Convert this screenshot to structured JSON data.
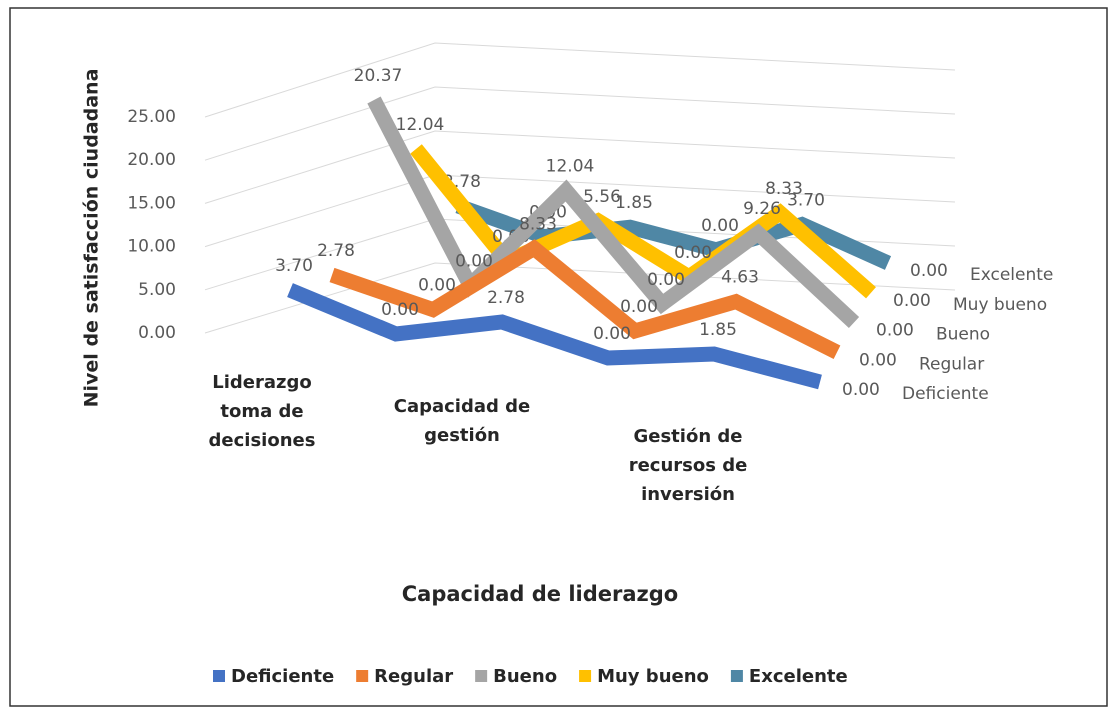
{
  "chart_data": {
    "type": "line3d",
    "y_label": "Nivel de satisfacción ciudadana",
    "x_label": "Capacidad de liderazgo",
    "categories": [
      "Liderazgo toma de decisiones",
      null,
      "Capacidad de gestión",
      null,
      "Gestión de recursos de inversión",
      null
    ],
    "ylim": [
      0,
      25
    ],
    "yticks": [
      {
        "value": 0,
        "label": "0.00"
      },
      {
        "value": 5,
        "label": "5.00"
      },
      {
        "value": 10,
        "label": "10.00"
      },
      {
        "value": 15,
        "label": "15.00"
      },
      {
        "value": 20,
        "label": "20.00"
      },
      {
        "value": 25,
        "label": "25.00"
      }
    ],
    "grid": true,
    "legend": "bottom",
    "series": [
      {
        "name": "Deficiente",
        "color": "#4472c4",
        "values": [
          3.7,
          0,
          2.78,
          0,
          1.85,
          0
        ],
        "value_labels": [
          "3.70",
          "0.00",
          "2.78",
          "0.00",
          "1.85",
          "0.00"
        ]
      },
      {
        "name": "Regular",
        "color": "#ed7d31",
        "values": [
          2.78,
          0,
          8.33,
          0,
          4.63,
          0
        ],
        "value_labels": [
          "2.78",
          "0.00",
          "8.33",
          "0.00",
          "4.63",
          "0.00"
        ]
      },
      {
        "name": "Bueno",
        "color": "#a5a5a5",
        "values": [
          20.37,
          0,
          12.04,
          0,
          9.26,
          0
        ],
        "value_labels": [
          "20.37",
          "0.00",
          "12.04",
          "0.00",
          "9.26",
          "0.00"
        ]
      },
      {
        "name": "Muy bueno",
        "color": "#ffc000",
        "values": [
          12.04,
          0,
          5.56,
          0,
          8.33,
          0
        ],
        "value_labels": [
          "12.04",
          "0.00",
          "5.56",
          "0.00",
          "8.33",
          "0.00"
        ]
      },
      {
        "name": "Excelente",
        "color": "#4f87a5",
        "values": [
          2.78,
          0,
          1.85,
          0,
          3.7,
          0
        ],
        "value_labels": [
          "2.78",
          "0.00",
          "1.85",
          "0.00",
          "3.70",
          "0.00"
        ]
      }
    ]
  }
}
